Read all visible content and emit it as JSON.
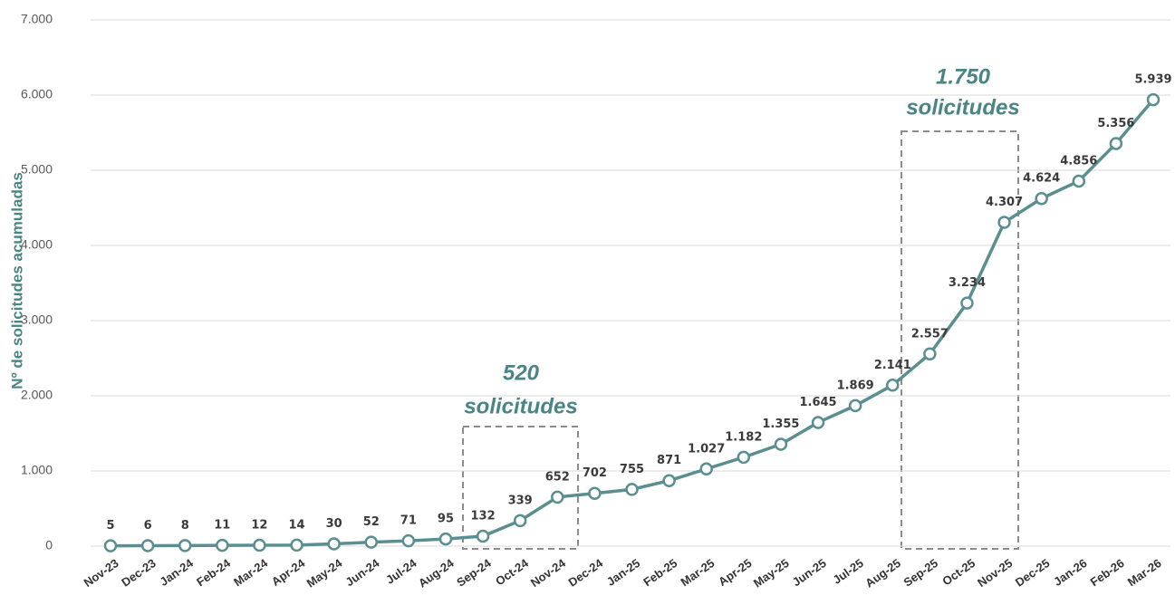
{
  "chart_data": {
    "type": "line",
    "y_label": "Nº de solicitudes acumuladas",
    "categories": [
      "Nov-23",
      "Dec-23",
      "Jan-24",
      "Feb-24",
      "Mar-24",
      "Apr-24",
      "May-24",
      "Jun-24",
      "Jul-24",
      "Aug-24",
      "Sep-24",
      "Oct-24",
      "Nov-24",
      "Dec-24",
      "Jan-25",
      "Feb-25",
      "Mar-25",
      "Apr-25",
      "May-25",
      "Jun-25",
      "Jul-25",
      "Aug-25",
      "Sep-25",
      "Oct-25",
      "Nov-25",
      "Dec-25",
      "Jan-26",
      "Feb-26",
      "Mar-26"
    ],
    "series": [
      {
        "name": "Nº de solicitudes acumuladas",
        "color": "#5b8f8f",
        "values": [
          5,
          6,
          8,
          11,
          12,
          14,
          30,
          52,
          71,
          95,
          132,
          339,
          652,
          702,
          755,
          871,
          1027,
          1182,
          1355,
          1645,
          1869,
          2141,
          2557,
          3234,
          4307,
          4624,
          4856,
          5356,
          5939
        ],
        "value_labels": [
          "5",
          "6",
          "8",
          "11",
          "12",
          "14",
          "30",
          "52",
          "71",
          "95",
          "132",
          "339",
          "652",
          "702",
          "755",
          "871",
          "1.027",
          "1.182",
          "1.355",
          "1.645",
          "1.869",
          "2.141",
          "2.557",
          "3.234",
          "4.307",
          "4.624",
          "4.856",
          "5.356",
          "5.939"
        ]
      }
    ],
    "ylim": [
      0,
      7000
    ],
    "yticks": [
      0,
      {
        "value": 1000,
        "label": "1.000"
      },
      {
        "value": 2000,
        "label": "2.000"
      },
      {
        "value": 3000,
        "label": "3.000"
      },
      {
        "value": 4000,
        "label": "4.000"
      },
      {
        "value": 5000,
        "label": "5.000"
      },
      {
        "value": 6000,
        "label": "6.000"
      },
      {
        "value": 7000,
        "label": "7.000"
      }
    ],
    "grid": true,
    "annotations": [
      {
        "lines": [
          "520",
          "solicitudes"
        ]
      },
      {
        "lines": [
          "1.750",
          "solicitudes"
        ]
      }
    ]
  }
}
